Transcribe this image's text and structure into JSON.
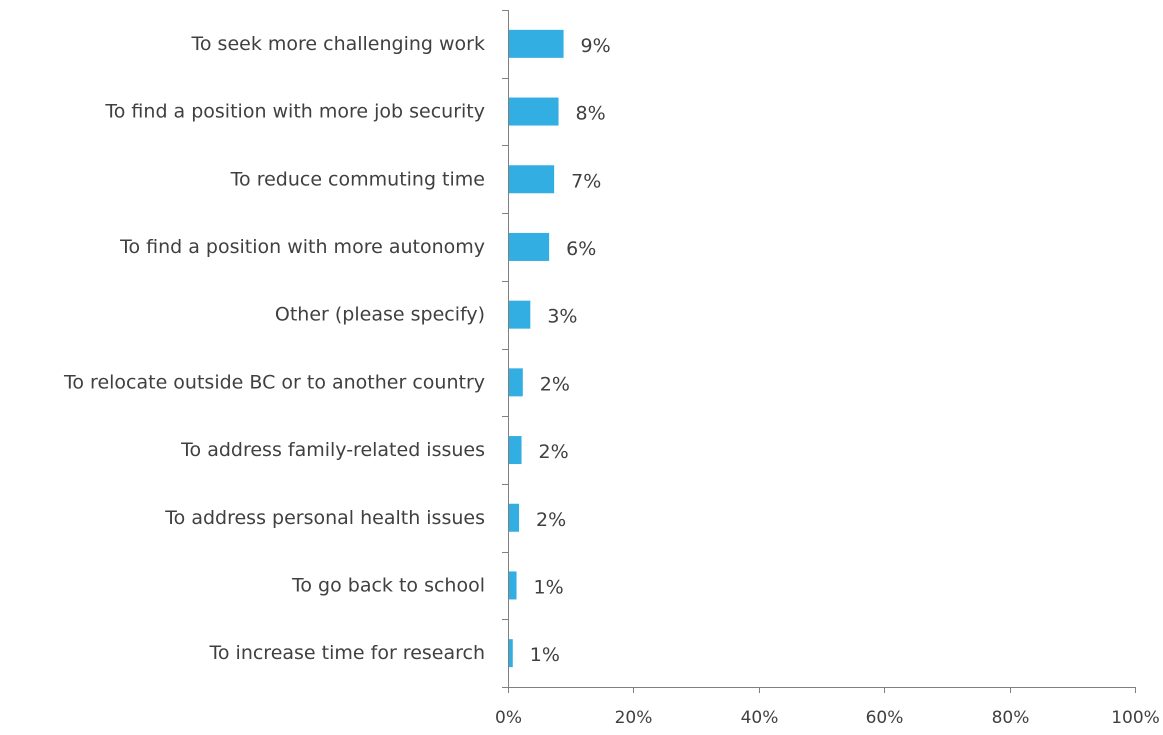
{
  "chart_data": {
    "type": "bar",
    "orientation": "horizontal",
    "title": "",
    "xlabel": "",
    "ylabel": "",
    "categories": [
      "To seek more challenging work",
      "To find a position with more job security",
      "To reduce commuting time",
      "To find a position with more autonomy",
      "Other (please specify)",
      "To relocate outside BC or to another country",
      "To address family-related issues",
      "To address personal health issues",
      "To go back to school",
      "To increase time for research"
    ],
    "values": [
      8.7,
      7.9,
      7.2,
      6.4,
      3.4,
      2.2,
      2.0,
      1.6,
      1.2,
      0.6
    ],
    "data_labels": [
      "9%",
      "8%",
      "7%",
      "6%",
      "3%",
      "2%",
      "2%",
      "2%",
      "1%",
      "1%"
    ],
    "xlim": [
      0,
      100
    ],
    "x_ticks": [
      0,
      20,
      40,
      60,
      80,
      100
    ],
    "x_tick_labels": [
      "0%",
      "20%",
      "40%",
      "60%",
      "80%",
      "100%"
    ],
    "bar_color": "#33aee2",
    "axis_color": "#808080",
    "text_color": "#404040",
    "grid": false,
    "legend": "none"
  }
}
